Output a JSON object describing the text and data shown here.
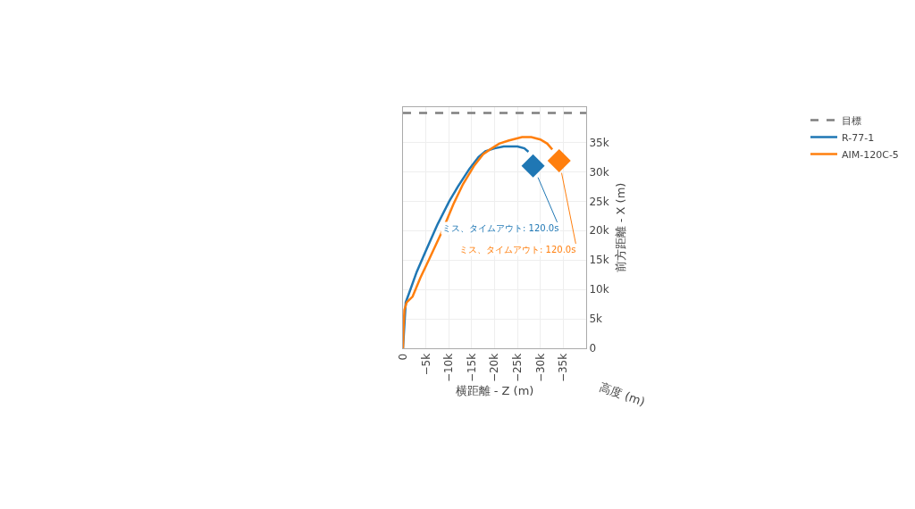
{
  "chart_data": {
    "type": "line",
    "xlabel": "横距離 - Z (m)",
    "ylabel": "前方距離 - X (m)",
    "xlim": [
      0,
      -40000
    ],
    "xticks": [
      0,
      {
        "value": -5000,
        "label": "−5k"
      },
      {
        "value": -10000,
        "label": "−10k"
      },
      {
        "value": -15000,
        "label": "−15k"
      },
      {
        "value": -20000,
        "label": "−20k"
      },
      {
        "value": -25000,
        "label": "−25k"
      },
      {
        "value": -30000,
        "label": "−30k"
      },
      {
        "value": -35000,
        "label": "−35k"
      }
    ],
    "ylim": [
      0,
      41000
    ],
    "yticks": [
      0,
      {
        "value": 5000,
        "label": "5k"
      },
      {
        "value": 10000,
        "label": "10k"
      },
      {
        "value": 15000,
        "label": "15k"
      },
      {
        "value": 20000,
        "label": "20k"
      },
      {
        "value": 25000,
        "label": "25k"
      },
      {
        "value": 30000,
        "label": "30k"
      },
      {
        "value": 35000,
        "label": "35k"
      }
    ],
    "grid": true,
    "legend": "top right",
    "marker": "none",
    "series": [
      {
        "name": "目標",
        "color": "#7f7f7f",
        "line_style": "dashed",
        "x": [
          0,
          -40000
        ],
        "values": [
          40000,
          40000
        ]
      },
      {
        "name": "R-77-1",
        "color": "#1f77b4",
        "line_style": "solid",
        "x": [
          0,
          -600,
          -1300,
          -3000,
          -5000,
          -7500,
          -10100,
          -12000,
          -14500,
          -16500,
          -18000,
          -20000,
          -22000,
          -25000,
          -26500,
          -27400
        ],
        "values": [
          0,
          7800,
          9300,
          13000,
          16600,
          21000,
          25000,
          27500,
          30500,
          32500,
          33500,
          34000,
          34300,
          34300,
          34000,
          33400
        ]
      },
      {
        "name": "AIM-120C-5",
        "color": "#ff7f0e",
        "line_style": "solid",
        "x": [
          0,
          -100,
          -300,
          -800,
          -2100,
          -3800,
          -5700,
          -8500,
          -11000,
          -13100,
          -15500,
          -17500,
          -19000,
          -21000,
          -23000,
          -26000,
          -28000,
          -30000,
          -31500,
          -32600
        ],
        "values": [
          0,
          3000,
          6500,
          7800,
          8800,
          12000,
          15100,
          19800,
          24500,
          27900,
          31000,
          33000,
          33800,
          34800,
          35300,
          35900,
          35900,
          35500,
          34800,
          33800
        ]
      },
      {
        "type": "scatter",
        "marker": "diamond",
        "color": "#1f77b4",
        "x": [
          -28400
        ],
        "values": [
          31000
        ]
      },
      {
        "type": "scatter",
        "marker": "diamond",
        "color": "#ff7f0e",
        "x": [
          -34100
        ],
        "values": [
          31900
        ]
      }
    ],
    "annotations": [
      {
        "text": "ミス、タイムアウト: 120.0s",
        "x": -28400,
        "y": 31000
      },
      {
        "text": "ミス、タイムアウト: 120.0s",
        "x": -34100,
        "y": 31900
      },
      "高度 (m)"
    ]
  }
}
